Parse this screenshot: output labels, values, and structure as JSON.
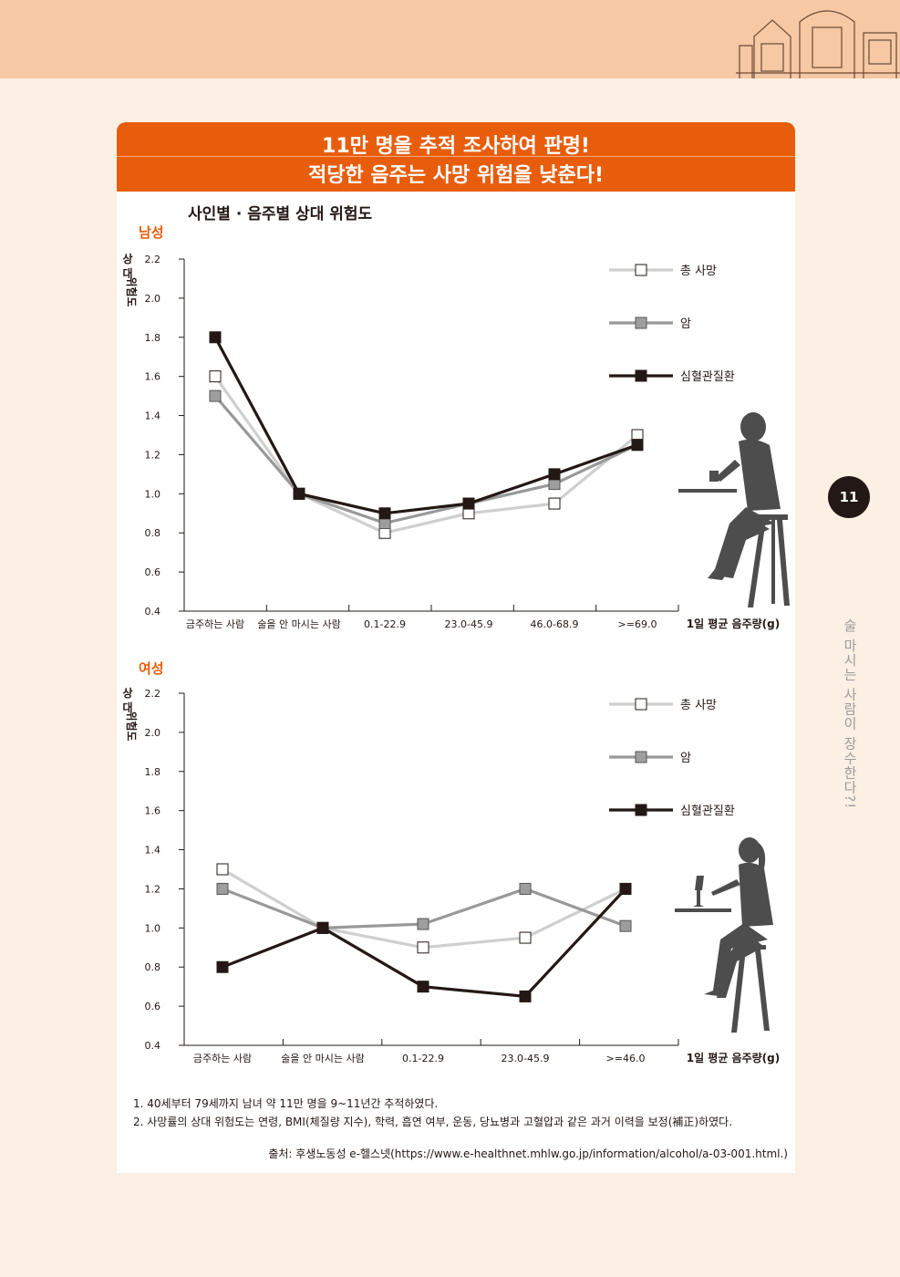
{
  "page": {
    "number": "11",
    "side_title": "술 마시는 사람이 장수한다?!"
  },
  "banner": {
    "line1": "11만 명을 추적 조사하여 판명!",
    "line2": "적당한 음주는 사망 위험을 낮춘다!"
  },
  "title": "사인별 · 음주별 상대 위험도",
  "notes": [
    "1. 40세부터 79세까지 남녀 약 11만 명을 9~11년간 추적하였다.",
    "2. 사망률의 상대 위험도는 연령, BMI(체질량 지수), 학력, 흡연 여부, 운동, 당뇨병과 고혈압과 같은 과거 이력을 보정(補正)하였다."
  ],
  "source": "출처: 후생노동성 e-헬스넷(https://www.e-healthnet.mhlw.go.jp/information/alcohol/a-03-001.html.)",
  "colors": {
    "accent": "#e85d0c",
    "total": "#cfcfcf",
    "cancer": "#999999",
    "cardio": "#231815"
  },
  "chart_data": [
    {
      "type": "line",
      "panel": "남성",
      "categories": [
        "금주하는 사람",
        "술을 안 마시는 사람",
        "0.1-22.9",
        "23.0-45.9",
        "46.0-68.9",
        ">=69.0"
      ],
      "series": [
        {
          "name": "총 사망",
          "values": [
            1.6,
            1.0,
            0.8,
            0.9,
            0.95,
            1.3
          ]
        },
        {
          "name": "암",
          "values": [
            1.5,
            1.0,
            0.85,
            0.95,
            1.05,
            1.25
          ]
        },
        {
          "name": "심혈관질환",
          "values": [
            1.8,
            1.0,
            0.9,
            0.95,
            1.1,
            1.25
          ]
        }
      ],
      "ylabel": "상대 위험도",
      "xlabel": "1일 평균 음주량(g)",
      "ylim": [
        0.4,
        2.2
      ],
      "yticks": [
        "0.4",
        "0.6",
        "0.8",
        "1.0",
        "1.2",
        "1.4",
        "1.6",
        "1.8",
        "2.0",
        "2.2"
      ],
      "legend": "top-right",
      "grid": false
    },
    {
      "type": "line",
      "panel": "여성",
      "categories": [
        "금주하는 사람",
        "술을 안 마시는 사람",
        "0.1-22.9",
        "23.0-45.9",
        ">=46.0"
      ],
      "series": [
        {
          "name": "총 사망",
          "values": [
            1.3,
            1.0,
            0.9,
            0.95,
            1.2
          ]
        },
        {
          "name": "암",
          "values": [
            1.2,
            1.0,
            1.02,
            1.2,
            1.01
          ]
        },
        {
          "name": "심혈관질환",
          "values": [
            0.8,
            1.0,
            0.7,
            0.65,
            1.2
          ]
        }
      ],
      "ylabel": "상대 위험도",
      "xlabel": "1일 평균 음주량(g)",
      "ylim": [
        0.4,
        2.2
      ],
      "yticks": [
        "0.4",
        "0.6",
        "0.8",
        "1.0",
        "1.2",
        "1.4",
        "1.6",
        "1.8",
        "2.0",
        "2.2"
      ],
      "legend": "top-right",
      "grid": false
    }
  ]
}
